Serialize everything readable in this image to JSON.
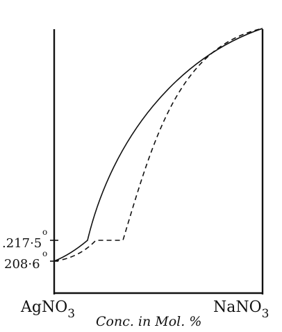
{
  "chart_data": {
    "type": "line",
    "xlabel": "Conc. in Mol. %",
    "x_endpoints": {
      "left": {
        "base": "AgNO",
        "sub": "3"
      },
      "right": {
        "base": "NaNO",
        "sub": "3"
      }
    },
    "y_tick_labels": [
      {
        "text": ".217·5",
        "superscript": "o",
        "value": 217.5
      },
      {
        "text": "208·6",
        "superscript": "o",
        "value": 208.6
      }
    ],
    "series": [
      {
        "style": "solid",
        "points": [
          [
            0,
            208.6
          ],
          [
            16,
            217.5
          ],
          [
            100,
            308
          ]
        ]
      },
      {
        "style": "dashed",
        "points": [
          [
            0,
            208.6
          ],
          [
            20,
            217.5
          ],
          [
            33,
            217.5
          ],
          [
            100,
            308
          ]
        ]
      }
    ]
  }
}
